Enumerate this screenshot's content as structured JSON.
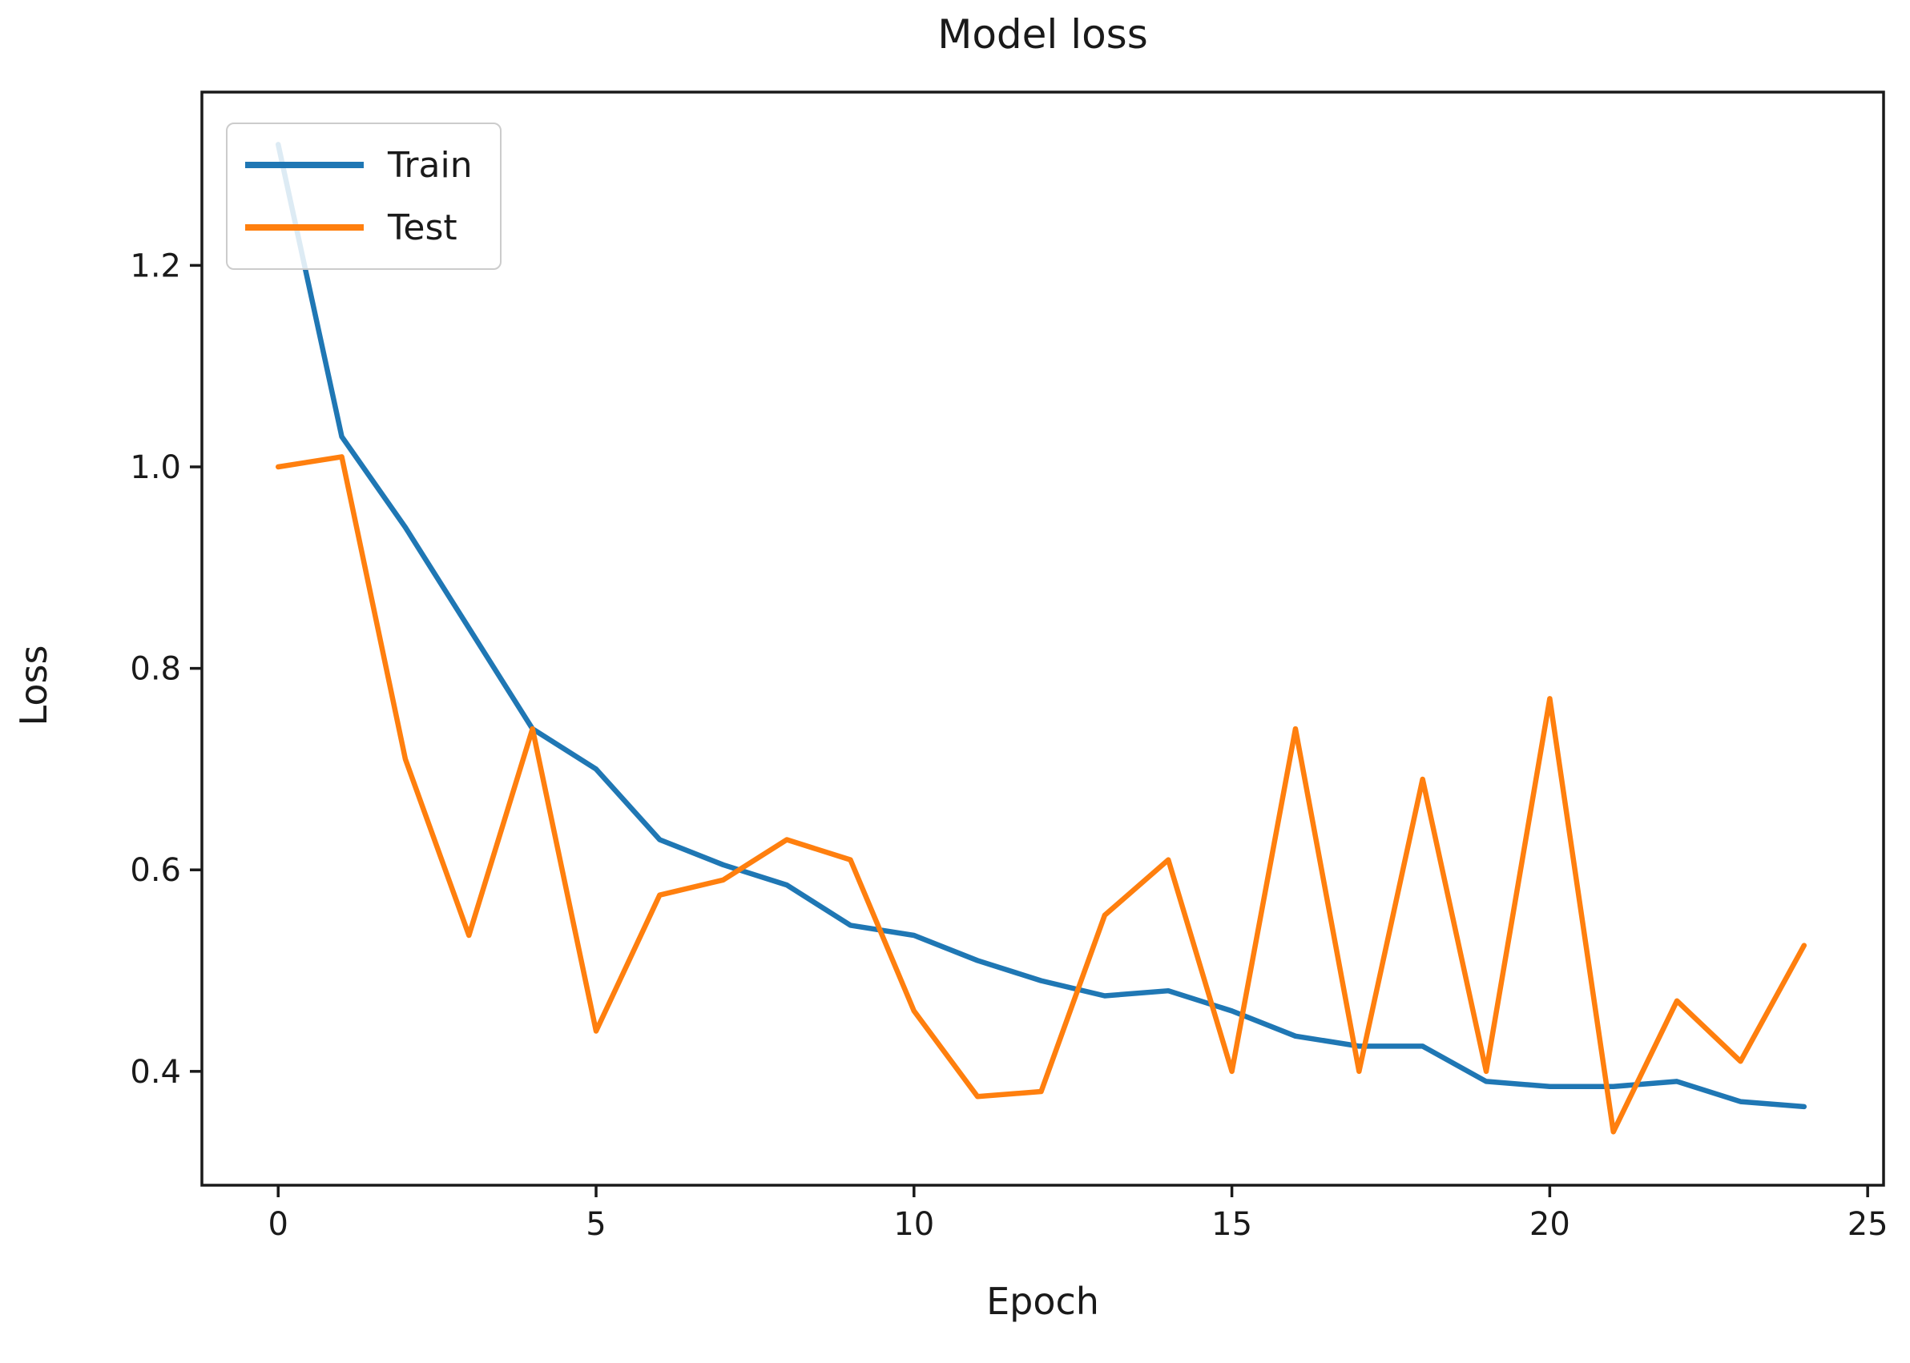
{
  "chart_data": {
    "type": "line",
    "title": "Model loss",
    "xlabel": "Epoch",
    "ylabel": "Loss",
    "legend_position": "upper left",
    "grid": false,
    "xlim": [
      -1.2,
      25.25
    ],
    "ylim": [
      0.287,
      1.372
    ],
    "x_tick_values": [
      0,
      5,
      10,
      15,
      20,
      25
    ],
    "x_tick_labels": [
      "0",
      "5",
      "10",
      "15",
      "20",
      "25"
    ],
    "y_tick_values": [
      0.4,
      0.6,
      0.8,
      1.0,
      1.2
    ],
    "y_tick_labels": [
      "0.4",
      "0.6",
      "0.8",
      "1.0",
      "1.2"
    ],
    "x": [
      0,
      1,
      2,
      3,
      4,
      5,
      6,
      7,
      8,
      9,
      10,
      11,
      12,
      13,
      14,
      15,
      16,
      17,
      18,
      19,
      20,
      21,
      22,
      23,
      24
    ],
    "series": [
      {
        "name": "Train",
        "color": "#1f77b4",
        "values": [
          1.32,
          1.03,
          0.94,
          0.84,
          0.74,
          0.7,
          0.63,
          0.605,
          0.585,
          0.545,
          0.535,
          0.51,
          0.49,
          0.475,
          0.48,
          0.46,
          0.435,
          0.425,
          0.425,
          0.39,
          0.385,
          0.385,
          0.39,
          0.37,
          0.365
        ]
      },
      {
        "name": "Test",
        "color": "#ff7f0e",
        "values": [
          1.0,
          1.01,
          0.71,
          0.535,
          0.74,
          0.44,
          0.575,
          0.59,
          0.63,
          0.61,
          0.46,
          0.375,
          0.38,
          0.555,
          0.61,
          0.4,
          0.74,
          0.4,
          0.69,
          0.4,
          0.77,
          0.34,
          0.47,
          0.41,
          0.525
        ]
      }
    ],
    "colors": {
      "spine": "#1a1a1a",
      "text": "#1a1a1a",
      "background": "#ffffff"
    }
  }
}
